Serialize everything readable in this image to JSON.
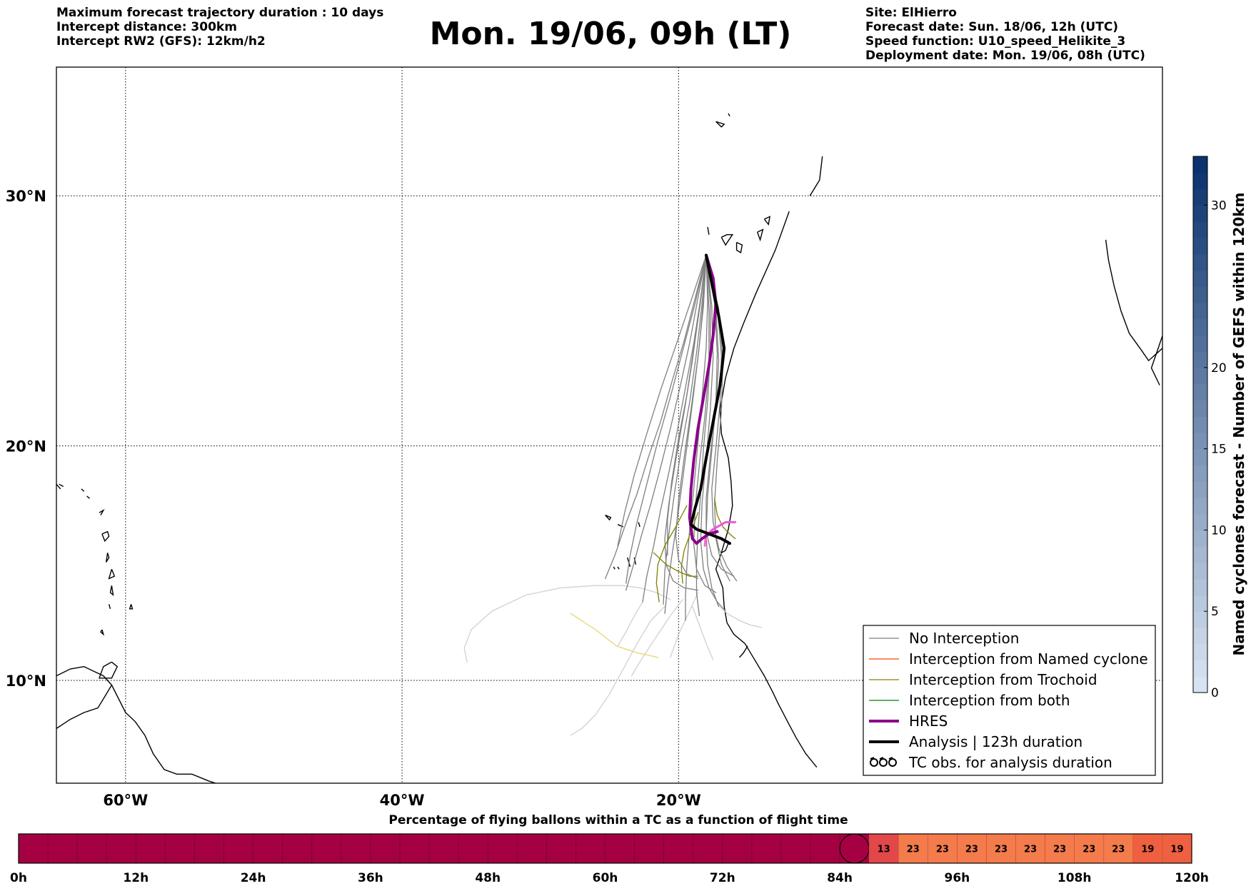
{
  "header": {
    "left_lines": [
      "Maximum forecast trajectory duration : 10 days",
      "Intercept distance: 300km",
      "Intercept RW2 (GFS):  12km/h2"
    ],
    "title": "Mon. 19/06, 09h (LT)",
    "right_lines": [
      "Site: ElHierro",
      "Forecast date: Sun. 18/06, 12h (UTC)",
      "Speed function: U10_speed_Helikite_3",
      "Deployment date: Mon. 19/06, 08h (UTC)"
    ]
  },
  "map": {
    "lon_range": [
      -65,
      15
    ],
    "lat_range": [
      5.5,
      34.8
    ],
    "lon_ticks": [
      {
        "value": -60,
        "label": "60°W"
      },
      {
        "value": -40,
        "label": "40°W"
      },
      {
        "value": -20,
        "label": "20°W"
      }
    ],
    "lat_ticks": [
      {
        "value": 30,
        "label": "30°N"
      },
      {
        "value": 20,
        "label": "20°N"
      },
      {
        "value": 10,
        "label": "10°N"
      }
    ],
    "grid": "dotted",
    "launch_site": {
      "lon": -18.0,
      "lat": 27.7
    }
  },
  "legend": {
    "position": "bottom-right",
    "entries": [
      {
        "label": "No Interception",
        "color": "#808080",
        "style": "line-thin"
      },
      {
        "label": "Interception from Named cyclone",
        "color": "#ff4500",
        "style": "line-thin"
      },
      {
        "label": "Interception from Trochoid",
        "color": "#808000",
        "style": "line-thin"
      },
      {
        "label": "Interception from both",
        "color": "#008000",
        "style": "line-thin"
      },
      {
        "label": "HRES",
        "color": "#8b008b",
        "style": "line-thick"
      },
      {
        "label": "Analysis | 123h duration",
        "color": "#000000",
        "style": "line-thick"
      },
      {
        "label": "TC obs. for analysis duration",
        "color": "#000000",
        "style": "cyclone-symbols"
      }
    ]
  },
  "colorbar": {
    "label": "Named cyclones forecast - Number of GEFS within 120km",
    "min": 0,
    "max": 33,
    "ticks": [
      0,
      5,
      10,
      15,
      20,
      30
    ],
    "color_low": "#dbe6f4",
    "color_high": "#08306b"
  },
  "timeline": {
    "title": "Percentage of flying ballons within a TC as a function of flight time",
    "start_h": 0,
    "end_h": 120,
    "ticks": [
      "0h",
      "12h",
      "24h",
      "36h",
      "48h",
      "60h",
      "72h",
      "84h",
      "96h",
      "108h",
      "120h"
    ],
    "marker_h": 85.5,
    "base_color": "#a50042"
  },
  "chart_data": {
    "type": "line",
    "title": "Mon. 19/06, 09h (LT)",
    "xlabel": "",
    "ylabel": "",
    "xlim": [
      -65,
      15
    ],
    "ylim": [
      5.5,
      34.8
    ],
    "series": [
      {
        "name": "HRES",
        "color": "#8b008b",
        "x": [
          -18.0,
          -17.5,
          -17.3,
          -17.5,
          -17.8,
          -18.2,
          -18.6,
          -18.9,
          -19.1,
          -19.2,
          -19.0,
          -18.7,
          -18.3,
          -17.8,
          -17.2
        ],
        "y": [
          27.7,
          26.8,
          25.8,
          24.5,
          23.3,
          22.0,
          20.7,
          19.4,
          18.2,
          17.0,
          16.1,
          15.9,
          16.1,
          16.3,
          16.4
        ]
      },
      {
        "name": "Analysis | 123h duration",
        "color": "#000000",
        "x": [
          -18.0,
          -17.6,
          -17.1,
          -16.7,
          -17.0,
          -17.5,
          -18.0,
          -18.4,
          -18.8,
          -19.1,
          -18.7,
          -17.8,
          -16.9,
          -16.3
        ],
        "y": [
          27.7,
          26.6,
          25.3,
          24.0,
          22.5,
          21.0,
          19.5,
          18.2,
          17.4,
          16.7,
          16.5,
          16.3,
          16.1,
          15.9
        ]
      },
      {
        "x": [
          -18.0,
          -18.8,
          -19.6,
          -20.5,
          -21.3,
          -22.2,
          -23.0,
          -23.9,
          -24.6,
          -25.3
        ],
        "y": [
          27.7,
          26.0,
          24.3,
          22.6,
          21.0,
          19.5,
          18.0,
          16.6,
          15.4,
          14.4
        ],
        "color": "#7f7f7f"
      },
      {
        "x": [
          -18.0,
          -18.6,
          -19.2,
          -19.9,
          -20.6,
          -21.3,
          -22.0,
          -22.7,
          -23.3,
          -23.8
        ],
        "y": [
          27.7,
          26.0,
          24.2,
          22.4,
          20.7,
          19.1,
          17.6,
          16.2,
          14.9,
          13.9
        ],
        "color": "#7f7f7f"
      },
      {
        "x": [
          -18.0,
          -18.4,
          -18.9,
          -19.5,
          -20.1,
          -20.7,
          -21.3,
          -21.8,
          -22.3,
          -22.6
        ],
        "y": [
          27.7,
          26.0,
          24.2,
          22.4,
          20.6,
          18.9,
          17.3,
          15.8,
          14.5,
          13.4
        ],
        "color": "#7f7f7f"
      },
      {
        "x": [
          -18.0,
          -18.2,
          -18.5,
          -18.9,
          -19.3,
          -19.7,
          -20.1,
          -20.5,
          -20.8,
          -21.0
        ],
        "y": [
          27.7,
          26.0,
          24.1,
          22.2,
          20.4,
          18.6,
          16.9,
          15.3,
          14.0,
          12.9
        ],
        "color": "#7f7f7f"
      },
      {
        "x": [
          -18.0,
          -17.9,
          -18.0,
          -18.3,
          -18.6,
          -18.9,
          -19.2,
          -19.4,
          -19.5,
          -19.5
        ],
        "y": [
          27.7,
          25.9,
          24.0,
          22.0,
          20.1,
          18.2,
          16.5,
          14.9,
          13.6,
          12.6
        ],
        "color": "#7f7f7f"
      },
      {
        "x": [
          -18.0,
          -17.7,
          -17.7,
          -17.9,
          -18.2,
          -18.4,
          -18.6,
          -18.7,
          -18.7,
          -18.5
        ],
        "y": [
          27.7,
          25.8,
          23.8,
          21.8,
          19.9,
          18.0,
          16.4,
          15.0,
          13.8,
          12.8
        ],
        "color": "#7f7f7f"
      },
      {
        "x": [
          -18.0,
          -17.4,
          -17.2,
          -17.3,
          -17.6,
          -17.9,
          -18.0,
          -17.9,
          -17.6,
          -17.1
        ],
        "y": [
          27.7,
          25.8,
          23.8,
          21.8,
          19.8,
          17.9,
          16.3,
          15.0,
          14.0,
          13.2
        ],
        "color": "#7f7f7f"
      },
      {
        "x": [
          -18.0,
          -17.2,
          -16.9,
          -17.0,
          -17.3,
          -17.6,
          -17.5,
          -17.1,
          -16.5,
          -15.8
        ],
        "y": [
          27.7,
          25.7,
          23.7,
          21.8,
          19.9,
          18.2,
          16.8,
          15.7,
          14.9,
          14.3
        ],
        "color": "#7f7f7f"
      },
      {
        "x": [
          -18.0,
          -18.8,
          -19.7,
          -20.6,
          -21.5,
          -22.3,
          -23.0,
          -23.5,
          -23.8
        ],
        "y": [
          27.7,
          25.8,
          23.9,
          22.0,
          20.2,
          18.4,
          16.8,
          15.4,
          14.2
        ],
        "color": "#7f7f7f"
      },
      {
        "x": [
          -18.0,
          -18.3,
          -18.7,
          -19.2,
          -19.8,
          -20.3,
          -20.7,
          -21.0,
          -21.1
        ],
        "y": [
          27.7,
          25.8,
          23.8,
          21.8,
          19.9,
          18.0,
          16.3,
          14.7,
          13.3
        ],
        "color": "#7f7f7f"
      },
      {
        "x": [
          -18.0,
          -17.6,
          -17.5,
          -17.7,
          -18.0,
          -18.3,
          -18.4,
          -18.2,
          -17.8,
          -17.2,
          -16.6
        ],
        "y": [
          27.7,
          25.7,
          23.6,
          21.5,
          19.5,
          17.6,
          16.0,
          14.8,
          14.0,
          13.4,
          13.0
        ],
        "color": "#7f7f7f"
      },
      {
        "x": [
          -18.0,
          -17.3,
          -17.1,
          -17.3,
          -17.7,
          -18.0,
          -18.0,
          -17.6,
          -16.9,
          -16.0
        ],
        "y": [
          27.7,
          25.6,
          23.5,
          21.5,
          19.6,
          17.8,
          16.4,
          15.4,
          14.8,
          14.5
        ],
        "color": "#7f7f7f"
      },
      {
        "x": [
          -18.0,
          -18.2,
          -18.6,
          -19.1,
          -19.6,
          -20.0,
          -20.2,
          -20.0,
          -19.4,
          -18.6
        ],
        "y": [
          27.7,
          25.7,
          23.6,
          21.5,
          19.5,
          17.7,
          16.2,
          15.2,
          14.6,
          14.4
        ],
        "color": "#7f7f7f"
      },
      {
        "x": [
          -18.0,
          -18.5,
          -19.0,
          -19.6,
          -20.2,
          -20.7,
          -21.0,
          -20.9,
          -20.4,
          -19.6,
          -18.6
        ],
        "y": [
          27.7,
          25.6,
          23.5,
          21.4,
          19.4,
          17.6,
          16.1,
          15.0,
          14.3,
          14.0,
          13.9
        ],
        "color": "#7f7f7f"
      },
      {
        "x": [
          -18.0,
          -17.8,
          -17.8,
          -18.1,
          -18.5,
          -18.8,
          -18.9,
          -18.7,
          -18.1,
          -17.3
        ],
        "y": [
          27.7,
          25.5,
          23.3,
          21.2,
          19.2,
          17.4,
          15.9,
          14.8,
          14.1,
          13.8
        ],
        "color": "#7f7f7f"
      },
      {
        "x": [
          -18.0,
          -17.1,
          -16.8,
          -16.9,
          -17.2,
          -17.4,
          -17.3,
          -16.9,
          -16.3
        ],
        "y": [
          27.7,
          25.6,
          23.5,
          21.4,
          19.4,
          17.6,
          16.1,
          15.0,
          14.3
        ],
        "color": "#7f7f7f"
      },
      {
        "x": [
          -18.0,
          -19.1,
          -20.2,
          -21.3,
          -22.3,
          -23.2,
          -23.9,
          -24.4
        ],
        "y": [
          27.7,
          25.9,
          24.1,
          22.3,
          20.5,
          18.8,
          17.2,
          15.8
        ],
        "color": "#7f7f7f"
      },
      {
        "x": [
          -18.0,
          -18.4,
          -18.9,
          -19.4,
          -20.0,
          -20.5,
          -20.8,
          -20.8
        ],
        "y": [
          27.7,
          25.9,
          24.0,
          22.1,
          20.3,
          18.5,
          16.9,
          15.4
        ],
        "color": "#7f7f7f"
      },
      {
        "x": [
          -19.4,
          -20.2,
          -21.0,
          -21.5,
          -21.6,
          -21.4
        ],
        "y": [
          17.5,
          16.6,
          15.8,
          15.0,
          14.2,
          13.4
        ],
        "color": "#808000"
      },
      {
        "x": [
          -18.6,
          -19.1,
          -19.6,
          -19.8,
          -19.7
        ],
        "y": [
          17.2,
          16.4,
          15.6,
          14.9,
          14.2
        ],
        "color": "#808000"
      },
      {
        "x": [
          -17.4,
          -17.2,
          -16.8,
          -16.3,
          -15.9
        ],
        "y": [
          17.8,
          17.1,
          16.6,
          16.3,
          16.1
        ],
        "color": "#808000"
      },
      {
        "x": [
          -21.8,
          -20.9,
          -20.0,
          -19.2,
          -18.6
        ],
        "y": [
          15.5,
          15.0,
          14.7,
          14.5,
          14.5
        ],
        "color": "#808000"
      },
      {
        "x": [
          -20.6,
          -21.6,
          -22.8,
          -24.0,
          -26.0,
          -28.5,
          -31.0,
          -33.5,
          -35.0,
          -35.5,
          -35.3
        ],
        "y": [
          13.5,
          13.8,
          14.0,
          14.1,
          14.1,
          14.0,
          13.7,
          13.0,
          12.2,
          11.4,
          10.8
        ],
        "color": "#d0d0d0"
      },
      {
        "x": [
          -21.0,
          -22.0,
          -23.0,
          -24.0,
          -25.0,
          -26.0,
          -27.0,
          -27.8
        ],
        "y": [
          13.2,
          12.6,
          11.6,
          10.5,
          9.4,
          8.5,
          7.9,
          7.6
        ],
        "color": "#d0d0d0"
      },
      {
        "x": [
          -19.7,
          -20.6,
          -21.6,
          -22.6,
          -23.4
        ],
        "y": [
          13.5,
          12.8,
          11.9,
          11.0,
          10.2
        ],
        "color": "#d0d0d0"
      },
      {
        "x": [
          -18.6,
          -19.2,
          -20.0,
          -20.6
        ],
        "y": [
          13.8,
          13.0,
          12.0,
          11.0
        ],
        "color": "#d0d0d0"
      },
      {
        "x": [
          -17.2,
          -16.5,
          -15.6,
          -14.8,
          -14.0
        ],
        "y": [
          13.3,
          12.9,
          12.6,
          12.4,
          12.3
        ],
        "color": "#d0d0d0"
      },
      {
        "x": [
          -19.0,
          -18.5,
          -18.0,
          -17.5
        ],
        "y": [
          13.2,
          12.4,
          11.6,
          10.9
        ],
        "color": "#d0d0d0"
      },
      {
        "x": [
          -22.6,
          -23.2,
          -23.8,
          -24.4
        ],
        "y": [
          13.4,
          12.8,
          12.1,
          11.5
        ],
        "color": "#d0d0d0"
      },
      {
        "x": [
          -21.5,
          -23.0,
          -24.5,
          -26.0,
          -27.8
        ],
        "y": [
          11.0,
          11.2,
          11.5,
          12.2,
          12.9
        ],
        "color": "#e5d86a"
      },
      {
        "x": [
          -18.0,
          -18.1
        ],
        "y": [
          16.4,
          15.8
        ],
        "color": "#ff66cc"
      },
      {
        "x": [
          -18.3,
          -17.5,
          -16.6,
          -15.9
        ],
        "y": [
          16.1,
          16.5,
          16.8,
          16.8
        ],
        "color": "#ee55dd"
      }
    ]
  }
}
